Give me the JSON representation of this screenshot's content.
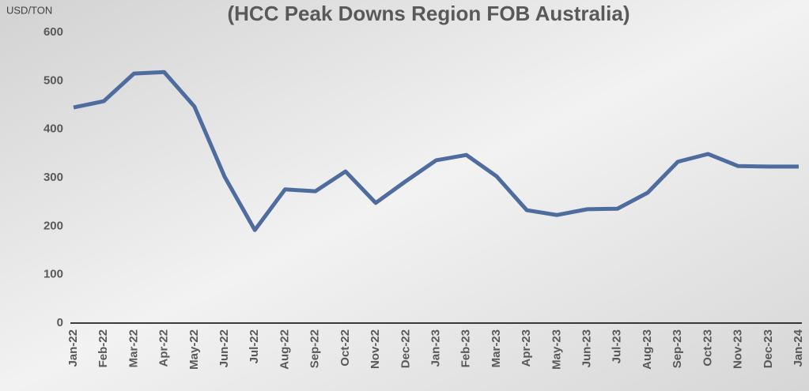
{
  "chart_data": {
    "type": "line",
    "title": "(HCC Peak Downs Region FOB Australia)",
    "y_label": "USD/TON",
    "categories": [
      "Jan-22",
      "Feb-22",
      "Mar-22",
      "Apr-22",
      "May-22",
      "Jun-22",
      "Jul-22",
      "Aug-22",
      "Sep-22",
      "Oct-22",
      "Nov-22",
      "Dec-22",
      "Jan-23",
      "Feb-23",
      "Mar-23",
      "Apr-23",
      "May-23",
      "Jun-23",
      "Jul-23",
      "Aug-23",
      "Sep-23",
      "Oct-23",
      "Nov-23",
      "Dec-23",
      "Jan-24"
    ],
    "series": [
      {
        "name": "HCC Peak Downs Region FOB Australia",
        "color": "#4e6d9e",
        "values": [
          445,
          458,
          515,
          518,
          447,
          302,
          192,
          276,
          272,
          313,
          248,
          293,
          336,
          347,
          303,
          233,
          223,
          235,
          236,
          269,
          333,
          349,
          324,
          323,
          323
        ]
      }
    ],
    "ylim": [
      0,
      600
    ],
    "yticks": [
      0,
      100,
      200,
      300,
      400,
      500,
      600
    ],
    "grid": false
  }
}
